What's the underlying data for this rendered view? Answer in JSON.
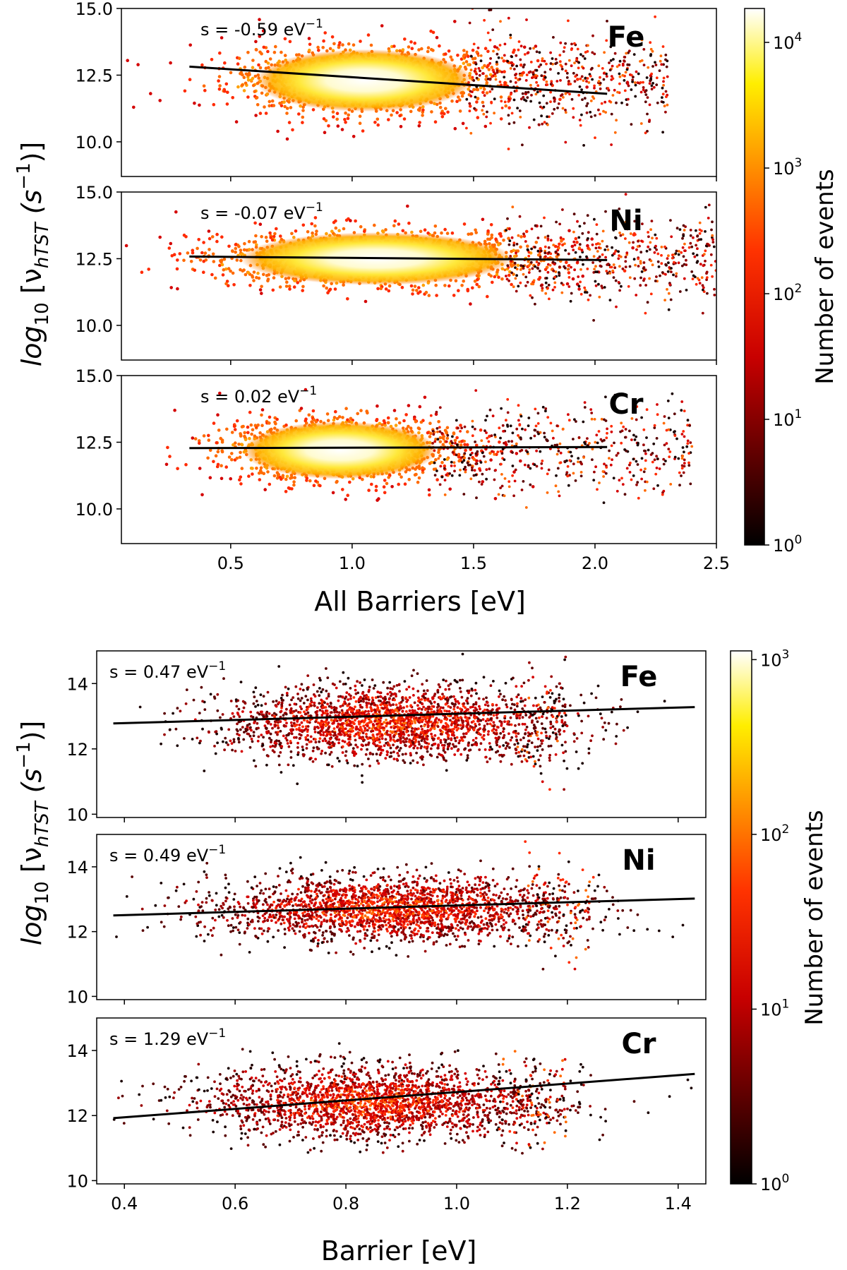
{
  "figure_top": {
    "ylabel_base": "log",
    "ylabel_sub": "10",
    "ylabel_rest": " [ν",
    "ylabel_nusub": "hTST",
    "ylabel_unit": " (s",
    "ylabel_sup": "−1",
    "ylabel_close": ")]",
    "xlabel": "All Barriers [eV]",
    "colorbar_label": "Number of events",
    "colorbar_ticks": [
      {
        "base": "10",
        "exp": "0",
        "value": 1
      },
      {
        "base": "10",
        "exp": "1",
        "value": 10
      },
      {
        "base": "10",
        "exp": "2",
        "value": 100
      },
      {
        "base": "10",
        "exp": "3",
        "value": 1000
      },
      {
        "base": "10",
        "exp": "4",
        "value": 10000
      }
    ]
  },
  "figure_bottom": {
    "ylabel_base": "log",
    "ylabel_sub": "10",
    "ylabel_rest": " [ν",
    "ylabel_nusub": "hTST",
    "ylabel_unit": " (s",
    "ylabel_sup": "−1",
    "ylabel_close": ")]",
    "xlabel": "Barrier [eV]",
    "colorbar_label": "Number of events",
    "colorbar_ticks": [
      {
        "base": "10",
        "exp": "0",
        "value": 1
      },
      {
        "base": "10",
        "exp": "1",
        "value": 10
      },
      {
        "base": "10",
        "exp": "2",
        "value": 100
      },
      {
        "base": "10",
        "exp": "3",
        "value": 1000
      }
    ]
  },
  "chart_data": [
    {
      "type": "scatter",
      "group": "top",
      "element": "Fe",
      "slope_label": "s = -0.59 eV",
      "slope_sup": "−1",
      "xlim": [
        0.05,
        2.5
      ],
      "ylim": [
        8.7,
        15.0
      ],
      "xticks": [
        "0.5",
        "1.0",
        "1.5",
        "2.0",
        "2.5"
      ],
      "yticks": [
        "10.0",
        "12.5",
        "15.0"
      ],
      "show_xticks": false,
      "fit_line": {
        "x": [
          0.33,
          2.05
        ],
        "y": [
          12.82,
          11.8
        ]
      },
      "cloud": {
        "cx": 1.05,
        "cy": 12.3,
        "sx": 0.28,
        "sy": 0.65,
        "tail_xmax": 2.3,
        "density": "high"
      }
    },
    {
      "type": "scatter",
      "group": "top",
      "element": "Ni",
      "slope_label": "s = -0.07 eV",
      "slope_sup": "−1",
      "xlim": [
        0.05,
        2.5
      ],
      "ylim": [
        8.7,
        15.0
      ],
      "xticks": [
        "0.5",
        "1.0",
        "1.5",
        "2.0",
        "2.5"
      ],
      "yticks": [
        "10.0",
        "12.5",
        "15.0"
      ],
      "show_xticks": false,
      "fit_line": {
        "x": [
          0.33,
          2.05
        ],
        "y": [
          12.58,
          12.45
        ]
      },
      "cloud": {
        "cx": 1.1,
        "cy": 12.5,
        "sx": 0.35,
        "sy": 0.55,
        "tail_xmax": 2.5,
        "density": "high"
      }
    },
    {
      "type": "scatter",
      "group": "top",
      "element": "Cr",
      "slope_label": "s = 0.02 eV",
      "slope_sup": "−1",
      "xlim": [
        0.05,
        2.5
      ],
      "ylim": [
        8.7,
        15.0
      ],
      "xticks": [
        "0.5",
        "1.0",
        "1.5",
        "2.0",
        "2.5"
      ],
      "yticks": [
        "10.0",
        "12.5",
        "15.0"
      ],
      "show_xticks": true,
      "fit_line": {
        "x": [
          0.33,
          2.05
        ],
        "y": [
          12.28,
          12.32
        ]
      },
      "cloud": {
        "cx": 0.95,
        "cy": 12.2,
        "sx": 0.25,
        "sy": 0.6,
        "tail_xmax": 2.4,
        "density": "high"
      }
    },
    {
      "type": "scatter",
      "group": "bottom",
      "element": "Fe",
      "slope_label": "s = 0.47 eV",
      "slope_sup": "−1",
      "xlim": [
        0.35,
        1.45
      ],
      "ylim": [
        9.9,
        15.0
      ],
      "xticks": [
        "0.4",
        "0.6",
        "0.8",
        "1.0",
        "1.2",
        "1.4"
      ],
      "yticks": [
        "10",
        "12",
        "14"
      ],
      "show_xticks": false,
      "fit_line": {
        "x": [
          0.38,
          1.43
        ],
        "y": [
          12.78,
          13.28
        ]
      },
      "cloud": {
        "cx": 0.88,
        "cy": 12.8,
        "sx": 0.15,
        "sy": 0.55,
        "tail_xmax": 1.2,
        "density": "low"
      }
    },
    {
      "type": "scatter",
      "group": "bottom",
      "element": "Ni",
      "slope_label": "s = 0.49 eV",
      "slope_sup": "−1",
      "xlim": [
        0.35,
        1.45
      ],
      "ylim": [
        9.9,
        15.0
      ],
      "xticks": [
        "0.4",
        "0.6",
        "0.8",
        "1.0",
        "1.2",
        "1.4"
      ],
      "yticks": [
        "10",
        "12",
        "14"
      ],
      "show_xticks": false,
      "fit_line": {
        "x": [
          0.38,
          1.43
        ],
        "y": [
          12.5,
          13.02
        ]
      },
      "cloud": {
        "cx": 0.88,
        "cy": 12.7,
        "sx": 0.16,
        "sy": 0.5,
        "tail_xmax": 1.25,
        "density": "low"
      }
    },
    {
      "type": "scatter",
      "group": "bottom",
      "element": "Cr",
      "slope_label": "s = 1.29 eV",
      "slope_sup": "−1",
      "xlim": [
        0.35,
        1.45
      ],
      "ylim": [
        9.9,
        15.0
      ],
      "xticks": [
        "0.4",
        "0.6",
        "0.8",
        "1.0",
        "1.2",
        "1.4"
      ],
      "yticks": [
        "10",
        "12",
        "14"
      ],
      "show_xticks": true,
      "fit_line": {
        "x": [
          0.38,
          1.43
        ],
        "y": [
          11.92,
          13.28
        ]
      },
      "cloud": {
        "cx": 0.85,
        "cy": 12.4,
        "sx": 0.15,
        "sy": 0.55,
        "tail_xmax": 1.2,
        "density": "low"
      }
    }
  ]
}
